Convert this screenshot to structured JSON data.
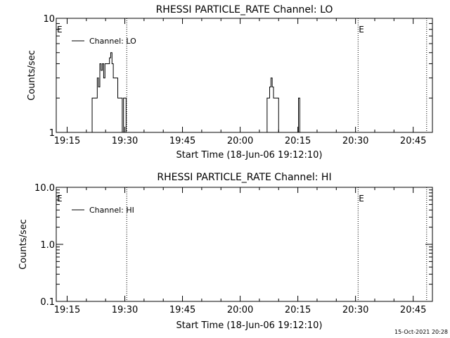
{
  "footer_timestamp": "15-Oct-2021 20:28",
  "chart_data": [
    {
      "type": "line",
      "title": "RHESSI PARTICLE_RATE Channel: LO",
      "xlabel": "Start Time (18-Jun-06 19:12:10)",
      "ylabel": "Counts/sec",
      "y_scale": "log",
      "ylim": [
        1,
        10
      ],
      "y_tick_labels": [
        "1",
        "10"
      ],
      "xlim": [
        "19:12:10",
        "20:50:00"
      ],
      "x_tick_labels": [
        "19:15",
        "19:30",
        "19:45",
        "20:00",
        "20:15",
        "20:30",
        "20:45"
      ],
      "grid": false,
      "legend": "top-left",
      "series": [
        {
          "name": "Channel: LO",
          "points": [
            [
              "19:21:00",
              1
            ],
            [
              "19:21:30",
              2
            ],
            [
              "19:22:30",
              2
            ],
            [
              "19:22:50",
              3
            ],
            [
              "19:23:10",
              2.5
            ],
            [
              "19:23:30",
              4
            ],
            [
              "19:23:50",
              3.5
            ],
            [
              "19:24:10",
              4
            ],
            [
              "19:24:30",
              3
            ],
            [
              "19:24:50",
              4
            ],
            [
              "19:25:30",
              4
            ],
            [
              "19:26:00",
              4.5
            ],
            [
              "19:26:20",
              5
            ],
            [
              "19:26:40",
              4
            ],
            [
              "19:27:00",
              3
            ],
            [
              "19:27:40",
              3
            ],
            [
              "19:28:10",
              2
            ],
            [
              "19:29:00",
              2
            ],
            [
              "19:29:20",
              1
            ],
            [
              "19:29:40",
              2
            ],
            [
              "19:30:00",
              2
            ],
            [
              "19:30:20",
              1
            ],
            [
              "20:06:30",
              1
            ],
            [
              "20:07:00",
              2
            ],
            [
              "20:07:40",
              2.5
            ],
            [
              "20:08:00",
              3
            ],
            [
              "20:08:20",
              2.5
            ],
            [
              "20:08:40",
              2
            ],
            [
              "20:09:40",
              2
            ],
            [
              "20:10:00",
              1
            ],
            [
              "20:14:50",
              1
            ],
            [
              "20:15:10",
              2
            ],
            [
              "20:15:30",
              1
            ]
          ]
        }
      ],
      "event_markers": [
        {
          "time": "19:12:10",
          "label": "E"
        },
        {
          "time": "19:30:30",
          "label": ""
        },
        {
          "time": "20:30:40",
          "label": "E"
        },
        {
          "time": "20:48:30",
          "label": ""
        }
      ]
    },
    {
      "type": "line",
      "title": "RHESSI PARTICLE_RATE Channel: HI",
      "xlabel": "Start Time (18-Jun-06 19:12:10)",
      "ylabel": "Counts/sec",
      "y_scale": "log",
      "ylim": [
        0.1,
        10
      ],
      "y_tick_labels": [
        "0.1",
        "1.0",
        "10.0"
      ],
      "xlim": [
        "19:12:10",
        "20:50:00"
      ],
      "x_tick_labels": [
        "19:15",
        "19:30",
        "19:45",
        "20:00",
        "20:15",
        "20:30",
        "20:45"
      ],
      "grid": false,
      "legend": "top-left",
      "series": [
        {
          "name": "Channel: HI",
          "points": []
        }
      ],
      "event_markers": [
        {
          "time": "19:12:10",
          "label": "E"
        },
        {
          "time": "19:30:30",
          "label": ""
        },
        {
          "time": "20:30:40",
          "label": "E"
        },
        {
          "time": "20:48:30",
          "label": ""
        }
      ]
    }
  ]
}
